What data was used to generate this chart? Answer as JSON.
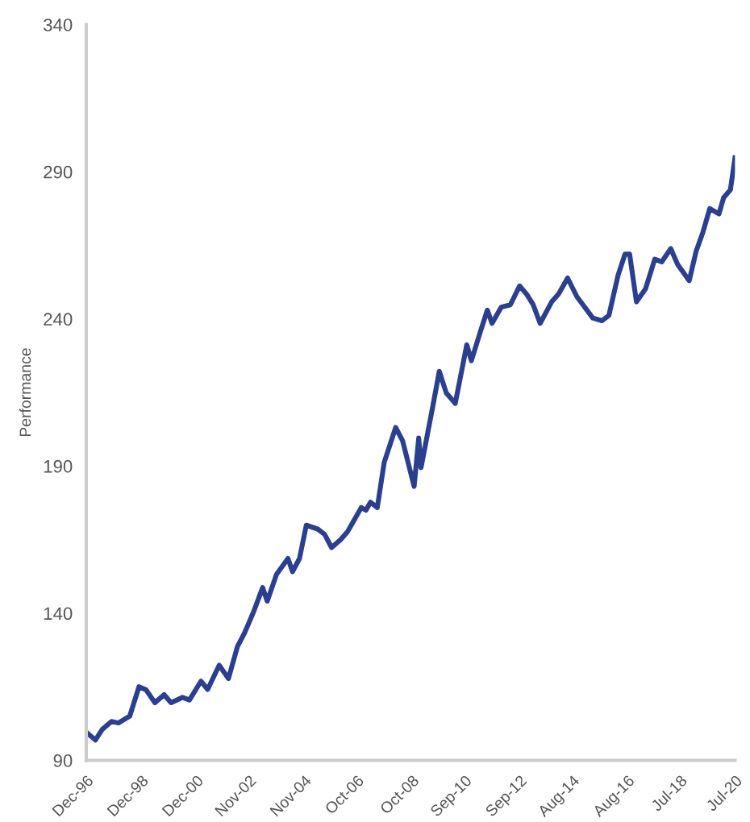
{
  "chart_data": {
    "type": "line",
    "ylabel": "Performance",
    "x": [
      "1996-12",
      "1997-04",
      "1997-07",
      "1997-11",
      "1998-02",
      "1998-07",
      "1998-11",
      "1999-02",
      "1999-06",
      "1999-10",
      "2000-01",
      "2000-06",
      "2000-09",
      "2001-02",
      "2001-05",
      "2001-10",
      "2002-02",
      "2002-06",
      "2002-09",
      "2003-01",
      "2003-05",
      "2003-07",
      "2003-11",
      "2004-04",
      "2004-06",
      "2004-09",
      "2004-12",
      "2005-05",
      "2005-08",
      "2005-11",
      "2006-03",
      "2006-06",
      "2006-12",
      "2007-02",
      "2007-04",
      "2007-07",
      "2007-10",
      "2008-03",
      "2008-06",
      "2008-11",
      "2009-01",
      "2009-02",
      "2009-07",
      "2009-10",
      "2010-01",
      "2010-05",
      "2010-10",
      "2010-12",
      "2011-04",
      "2011-07",
      "2011-09",
      "2012-01",
      "2012-05",
      "2012-09",
      "2012-12",
      "2013-03",
      "2013-06",
      "2013-11",
      "2014-02",
      "2014-06",
      "2014-10",
      "2015-05",
      "2015-09",
      "2015-12",
      "2016-04",
      "2016-07",
      "2016-09",
      "2016-12",
      "2017-04",
      "2017-08",
      "2017-11",
      "2018-03",
      "2018-06",
      "2018-11",
      "2019-02",
      "2019-05",
      "2019-08",
      "2019-12",
      "2020-02",
      "2020-05",
      "2020-07"
    ],
    "series": [
      {
        "color": "#2b3f8f",
        "values": [
          99.6,
          96.9,
          100.5,
          103.2,
          102.7,
          105,
          115,
          114,
          109.6,
          112.3,
          109.6,
          111.4,
          110.5,
          116.9,
          114.1,
          122.3,
          117.8,
          128.7,
          133.2,
          140.5,
          148.7,
          144.1,
          153.2,
          158.6,
          154.1,
          158.6,
          169.9,
          168.6,
          166.8,
          162.3,
          165,
          167.7,
          175.9,
          175,
          177.7,
          175.9,
          191.3,
          203.1,
          198.6,
          183.1,
          199.5,
          189.5,
          209.5,
          222.2,
          214.9,
          211.3,
          231.2,
          225.8,
          235.8,
          243,
          238.5,
          244,
          244.8,
          251.2,
          248.5,
          244.8,
          238.5,
          245.8,
          248.5,
          253.9,
          247.6,
          240.3,
          239.4,
          241.2,
          254.9,
          262,
          262,
          245.8,
          250.3,
          260.3,
          259.4,
          263.9,
          258.5,
          253,
          263,
          269.4,
          277.5,
          275.7,
          281.2,
          283.9,
          294.8
        ]
      }
    ],
    "xlim": [
      "1996-12",
      "2020-07"
    ],
    "xticks": [
      {
        "value": "1996-12",
        "label": "Dec-96"
      },
      {
        "value": "1998-12",
        "label": "Dec-98"
      },
      {
        "value": "2000-12",
        "label": "Dec-00"
      },
      {
        "value": "2002-11",
        "label": "Nov-02"
      },
      {
        "value": "2004-11",
        "label": "Nov-04"
      },
      {
        "value": "2006-10",
        "label": "Oct-06"
      },
      {
        "value": "2008-10",
        "label": "Oct-08"
      },
      {
        "value": "2010-09",
        "label": "Sep-10"
      },
      {
        "value": "2012-09",
        "label": "Sep-12"
      },
      {
        "value": "2014-08",
        "label": "Aug-14"
      },
      {
        "value": "2016-08",
        "label": "Aug-16"
      },
      {
        "value": "2018-07",
        "label": "Jul-18"
      },
      {
        "value": "2020-07",
        "label": "Jul-20"
      }
    ],
    "ylim": [
      90,
      340
    ],
    "yticks": [
      90,
      140,
      190,
      240,
      290,
      340
    ],
    "grid": false,
    "marker": "none",
    "line_style": "solid"
  }
}
